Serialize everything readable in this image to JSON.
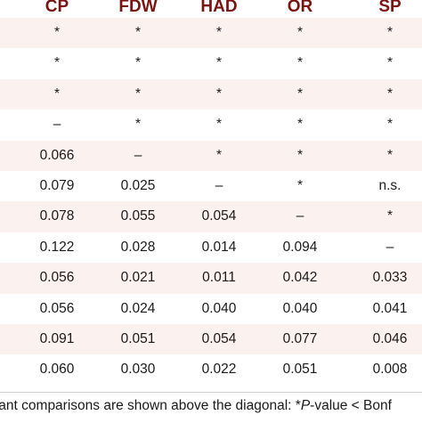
{
  "table": {
    "columns": [
      "CP",
      "FDW",
      "HAD",
      "OR",
      "SP"
    ],
    "rows": [
      [
        "*",
        "*",
        "*",
        "*",
        "*"
      ],
      [
        "*",
        "*",
        "*",
        "*",
        "*"
      ],
      [
        "*",
        "*",
        "*",
        "*",
        "*"
      ],
      [
        "–",
        "*",
        "*",
        "*",
        "*"
      ],
      [
        "0.066",
        "–",
        "*",
        "*",
        "*"
      ],
      [
        "0.079",
        "0.025",
        "–",
        "*",
        "n.s."
      ],
      [
        "0.078",
        "0.055",
        "0.054",
        "–",
        "*"
      ],
      [
        "0.122",
        "0.028",
        "0.014",
        "0.094",
        "–"
      ],
      [
        "0.056",
        "0.021",
        "0.011",
        "0.042",
        "0.033"
      ],
      [
        "0.056",
        "0.024",
        "0.040",
        "0.040",
        "0.041"
      ],
      [
        "0.091",
        "0.051",
        "0.054",
        "0.077",
        "0.046"
      ],
      [
        "0.060",
        "0.030",
        "0.022",
        "0.051",
        "0.008"
      ]
    ]
  },
  "footnote": {
    "prefix": "tant comparisons are shown above the diagonal: *",
    "italic": "P",
    "suffix": "-value < Bonf"
  }
}
